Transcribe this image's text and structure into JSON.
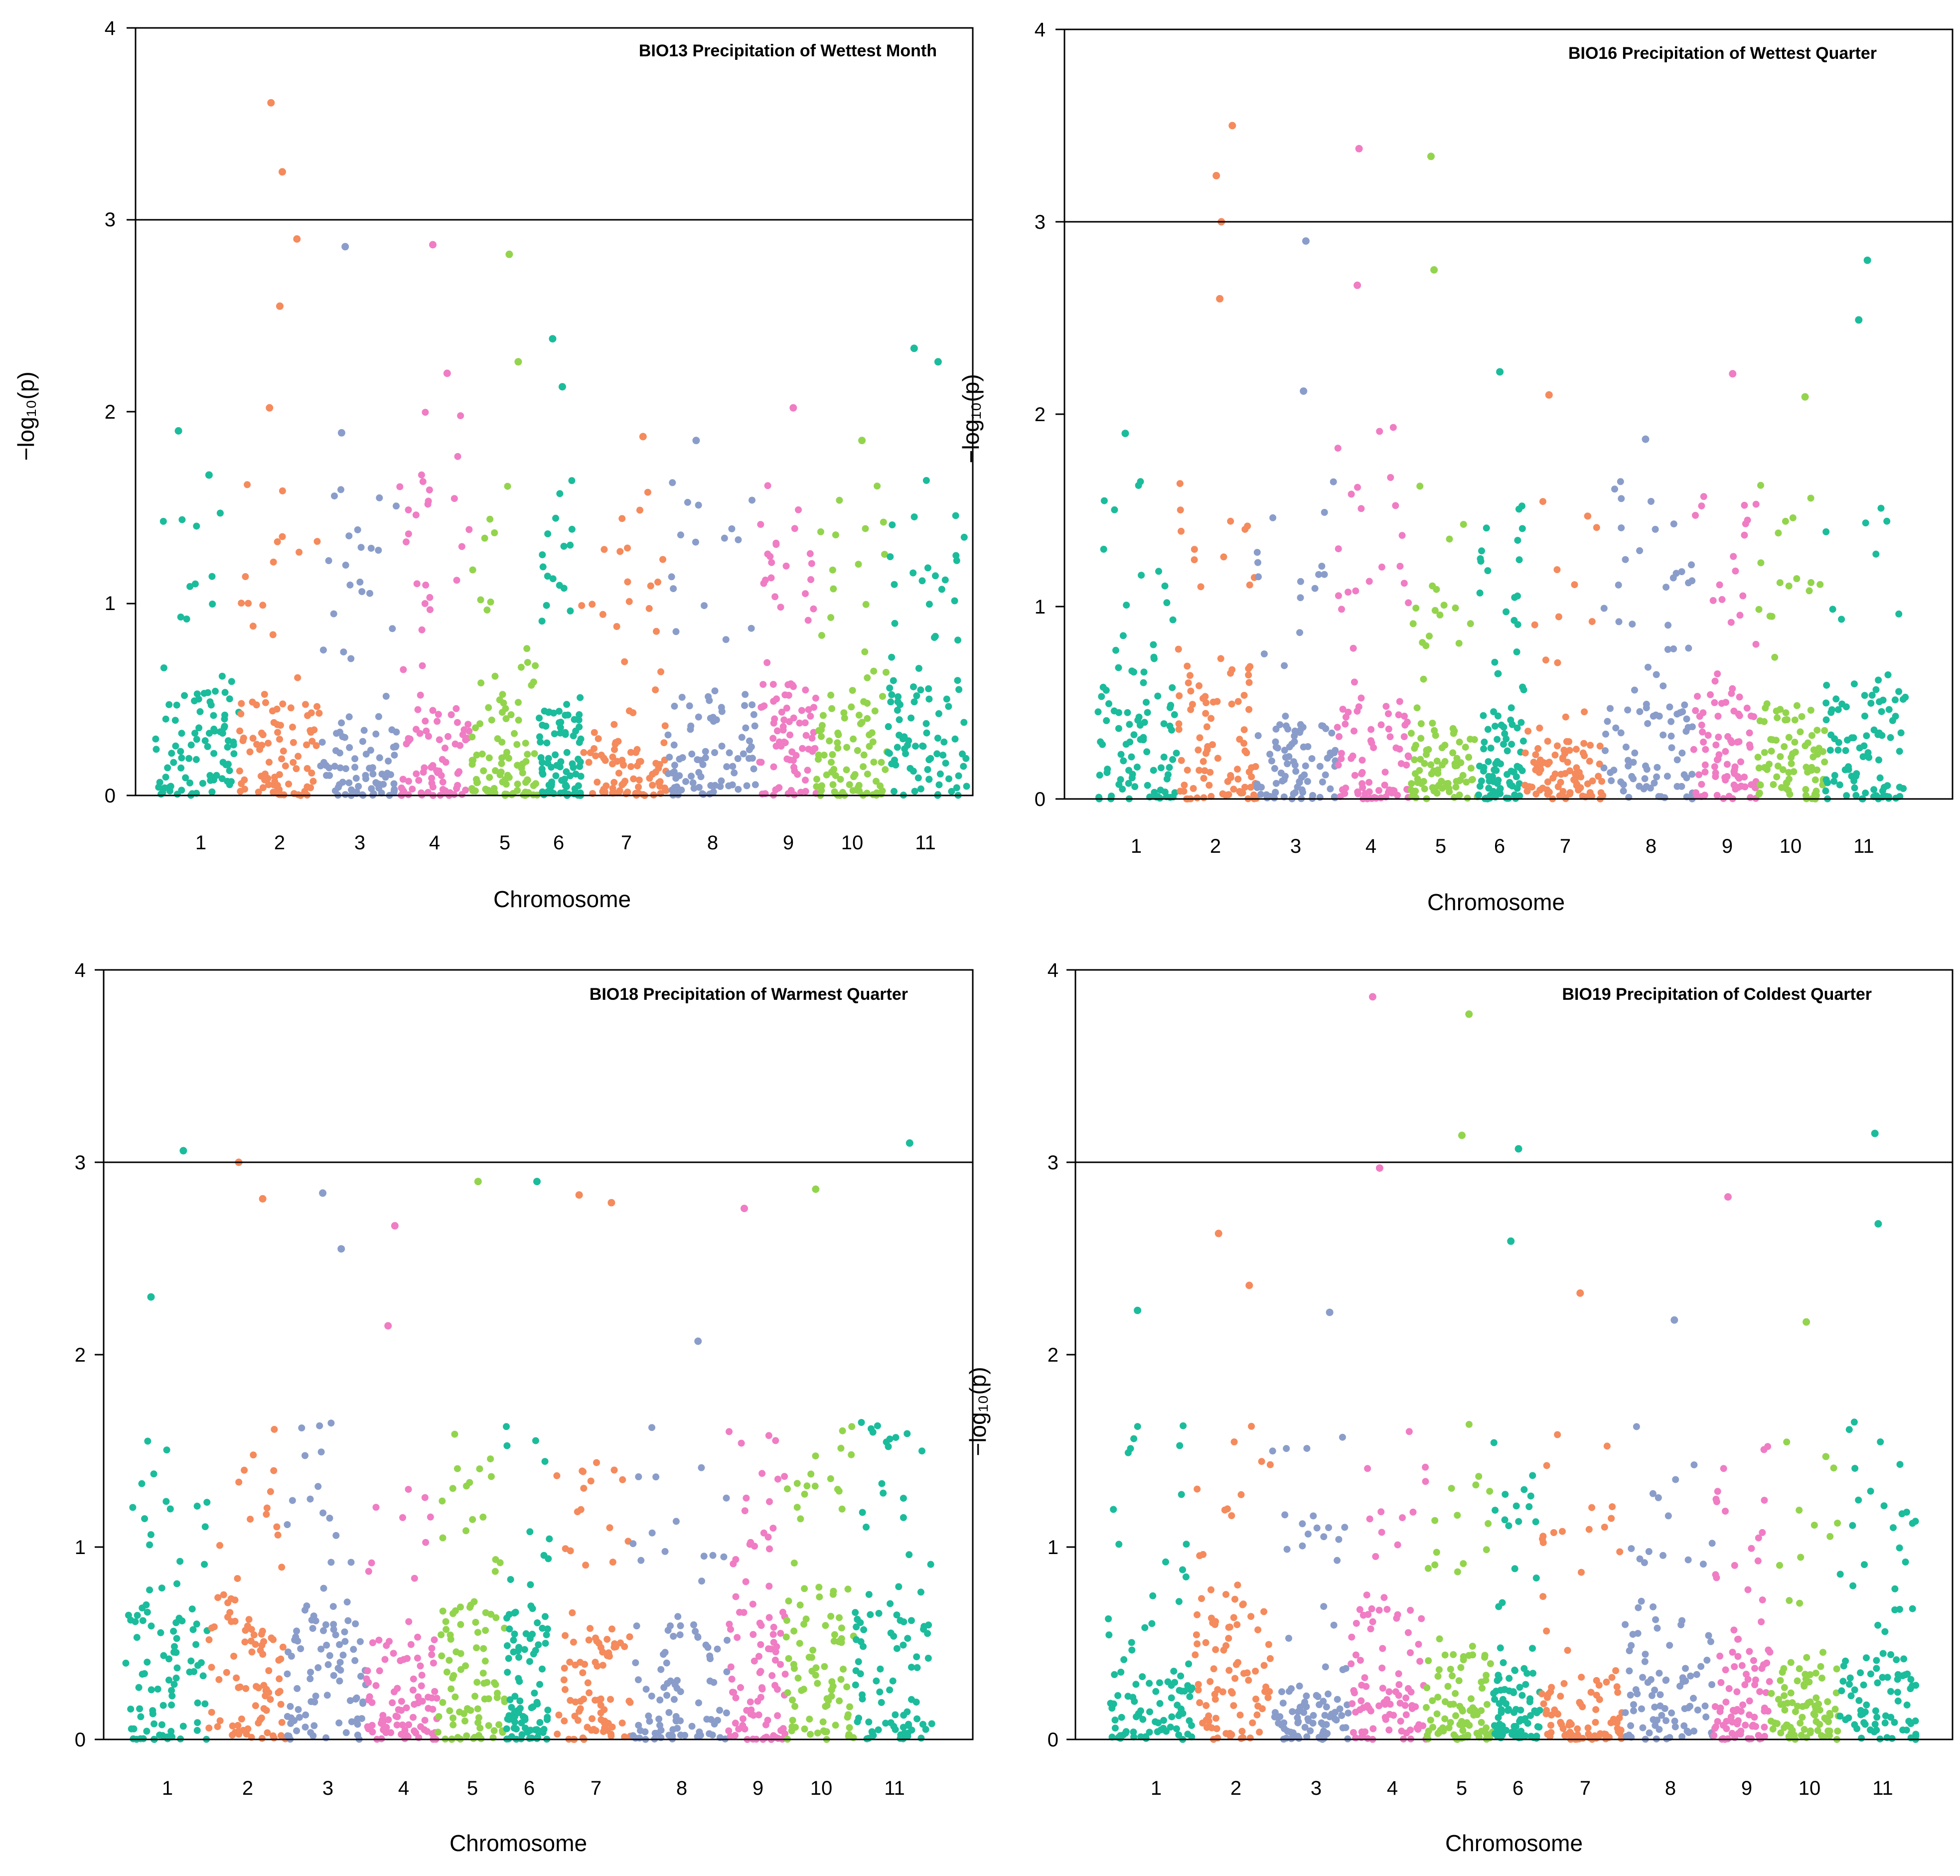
{
  "palette": {
    "1": "#1bbc9c",
    "2": "#f58a5c",
    "3": "#8a9dca",
    "4": "#f07cc4",
    "5": "#93d44d",
    "6": "#1bbc9c",
    "7": "#f58a5c",
    "8": "#8a9dca",
    "9": "#f07cc4",
    "10": "#93d44d",
    "11": "#1bbc9c"
  },
  "chart_data": [
    {
      "type": "scatter",
      "title": "BIO13 Precipitation of Wettest Month",
      "xlabel": "Chromosome",
      "ylabel": "−log₁₀(p)",
      "ylim": [
        0,
        4
      ],
      "yticks": [
        "0",
        "1",
        "2",
        "3",
        "4"
      ],
      "threshold": 3,
      "categories": [
        "1",
        "2",
        "3",
        "4",
        "5",
        "6",
        "7",
        "8",
        "9",
        "10",
        "11"
      ],
      "peaks": [
        {
          "chr": "1",
          "y": 1.67
        },
        {
          "chr": "1",
          "y": 1.9
        },
        {
          "chr": "2",
          "y": 3.61
        },
        {
          "chr": "2",
          "y": 3.25
        },
        {
          "chr": "2",
          "y": 2.9
        },
        {
          "chr": "2",
          "y": 2.55
        },
        {
          "chr": "2",
          "y": 2.02
        },
        {
          "chr": "3",
          "y": 2.86
        },
        {
          "chr": "3",
          "y": 1.89
        },
        {
          "chr": "4",
          "y": 2.87
        },
        {
          "chr": "4",
          "y": 2.2
        },
        {
          "chr": "5",
          "y": 2.82
        },
        {
          "chr": "5",
          "y": 2.26
        },
        {
          "chr": "6",
          "y": 2.38
        },
        {
          "chr": "6",
          "y": 2.13
        },
        {
          "chr": "7",
          "y": 1.87
        },
        {
          "chr": "8",
          "y": 1.85
        },
        {
          "chr": "9",
          "y": 2.02
        },
        {
          "chr": "10",
          "y": 1.85
        },
        {
          "chr": "11",
          "y": 2.33
        },
        {
          "chr": "11",
          "y": 2.26
        }
      ]
    },
    {
      "type": "scatter",
      "title": "BIO16 Precipitation of Wettest Quarter",
      "xlabel": "Chromosome",
      "ylabel": "−log₁₀(p)",
      "ylim": [
        0,
        4
      ],
      "yticks": [
        "0",
        "1",
        "2",
        "3",
        "4"
      ],
      "threshold": 3,
      "categories": [
        "1",
        "2",
        "3",
        "4",
        "5",
        "6",
        "7",
        "8",
        "9",
        "10",
        "11"
      ],
      "peaks": [
        {
          "chr": "1",
          "y": 1.9
        },
        {
          "chr": "2",
          "y": 3.5
        },
        {
          "chr": "2",
          "y": 3.24
        },
        {
          "chr": "2",
          "y": 3.0
        },
        {
          "chr": "2",
          "y": 2.6
        },
        {
          "chr": "3",
          "y": 2.9
        },
        {
          "chr": "3",
          "y": 2.12
        },
        {
          "chr": "4",
          "y": 3.38
        },
        {
          "chr": "4",
          "y": 2.67
        },
        {
          "chr": "5",
          "y": 3.34
        },
        {
          "chr": "5",
          "y": 2.75
        },
        {
          "chr": "6",
          "y": 2.22
        },
        {
          "chr": "7",
          "y": 2.1
        },
        {
          "chr": "8",
          "y": 1.87
        },
        {
          "chr": "9",
          "y": 2.21
        },
        {
          "chr": "10",
          "y": 2.09
        },
        {
          "chr": "11",
          "y": 2.8
        },
        {
          "chr": "11",
          "y": 2.49
        }
      ]
    },
    {
      "type": "scatter",
      "title": "BIO18 Precipitation of Warmest Quarter",
      "xlabel": "Chromosome",
      "ylabel": "",
      "ylim": [
        0,
        4
      ],
      "yticks": [
        "0",
        "1",
        "2",
        "3",
        "4"
      ],
      "threshold": 3,
      "categories": [
        "1",
        "2",
        "3",
        "4",
        "5",
        "6",
        "7",
        "8",
        "9",
        "10",
        "11"
      ],
      "peaks": [
        {
          "chr": "1",
          "y": 3.06
        },
        {
          "chr": "1",
          "y": 2.3
        },
        {
          "chr": "2",
          "y": 3.0
        },
        {
          "chr": "2",
          "y": 2.81
        },
        {
          "chr": "3",
          "y": 2.84
        },
        {
          "chr": "3",
          "y": 2.55
        },
        {
          "chr": "4",
          "y": 2.67
        },
        {
          "chr": "4",
          "y": 2.15
        },
        {
          "chr": "5",
          "y": 2.9
        },
        {
          "chr": "6",
          "y": 2.9
        },
        {
          "chr": "7",
          "y": 2.79
        },
        {
          "chr": "7",
          "y": 2.83
        },
        {
          "chr": "8",
          "y": 2.07
        },
        {
          "chr": "9",
          "y": 2.76
        },
        {
          "chr": "10",
          "y": 2.86
        },
        {
          "chr": "11",
          "y": 3.1
        }
      ]
    },
    {
      "type": "scatter",
      "title": "BIO19 Precipitation of Coldest  Quarter",
      "xlabel": "Chromosome",
      "ylabel": "−log₁₀(p)",
      "ylim": [
        0,
        4
      ],
      "yticks": [
        "0",
        "1",
        "2",
        "3",
        "4"
      ],
      "threshold": 3,
      "categories": [
        "1",
        "2",
        "3",
        "4",
        "5",
        "6",
        "7",
        "8",
        "9",
        "10",
        "11"
      ],
      "peaks": [
        {
          "chr": "1",
          "y": 2.23
        },
        {
          "chr": "2",
          "y": 2.63
        },
        {
          "chr": "2",
          "y": 2.36
        },
        {
          "chr": "3",
          "y": 2.22
        },
        {
          "chr": "4",
          "y": 3.86
        },
        {
          "chr": "4",
          "y": 2.97
        },
        {
          "chr": "5",
          "y": 3.77
        },
        {
          "chr": "5",
          "y": 3.14
        },
        {
          "chr": "6",
          "y": 3.07
        },
        {
          "chr": "6",
          "y": 2.59
        },
        {
          "chr": "7",
          "y": 2.32
        },
        {
          "chr": "8",
          "y": 2.18
        },
        {
          "chr": "9",
          "y": 2.82
        },
        {
          "chr": "10",
          "y": 2.17
        },
        {
          "chr": "11",
          "y": 3.15
        },
        {
          "chr": "11",
          "y": 2.68
        }
      ]
    }
  ]
}
